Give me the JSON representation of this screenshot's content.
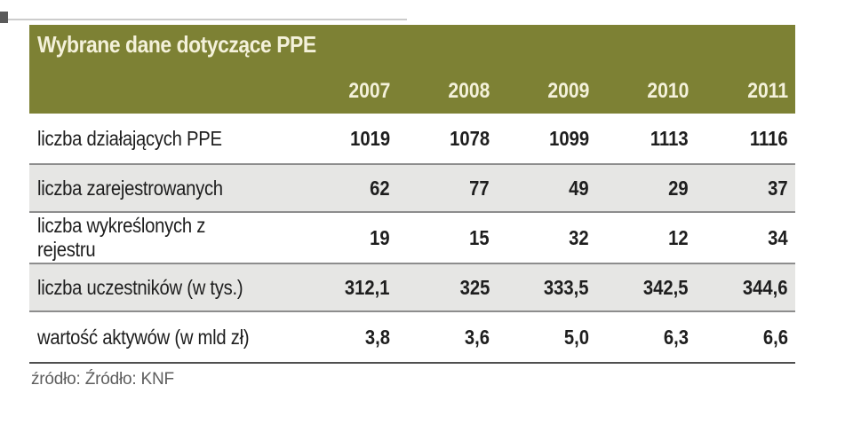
{
  "table": {
    "title": "Wybrane dane dotyczące PPE",
    "years": [
      "2007",
      "2008",
      "2009",
      "2010",
      "2011"
    ],
    "rows": [
      {
        "label": "liczba działających PPE",
        "values": [
          "1019",
          "1078",
          "1099",
          "1113",
          "1116"
        ]
      },
      {
        "label": "liczba zarejestrowanych",
        "values": [
          "62",
          "77",
          "49",
          "29",
          "37"
        ]
      },
      {
        "label": "liczba wykreślonych z rejestru",
        "values": [
          "19",
          "15",
          "32",
          "12",
          "34"
        ]
      },
      {
        "label": "liczba uczestników (w tys.)",
        "values": [
          "312,1",
          "325",
          "333,5",
          "342,5",
          "344,6"
        ]
      },
      {
        "label": "wartość aktywów (w mld zł)",
        "values": [
          "3,8",
          "3,6",
          "5,0",
          "6,3",
          "6,6"
        ]
      }
    ],
    "source": "źródło: Źródło: KNF"
  },
  "colors": {
    "header_bg": "#7d8134",
    "header_text": "#f4f1da",
    "alt_row_bg": "#e6e6e4",
    "alt_row_border": "#8d8d8d",
    "body_text": "#1e1e1e",
    "bottom_rule": "#4f4f4f",
    "source_text": "#5e5e5e"
  },
  "chart_data": {
    "type": "table",
    "title": "Wybrane dane dotyczące PPE",
    "categories": [
      "2007",
      "2008",
      "2009",
      "2010",
      "2011"
    ],
    "series": [
      {
        "name": "liczba działających PPE",
        "values": [
          1019,
          1078,
          1099,
          1113,
          1116
        ]
      },
      {
        "name": "liczba zarejestrowanych",
        "values": [
          62,
          77,
          49,
          29,
          37
        ]
      },
      {
        "name": "liczba wykreślonych z rejestru",
        "values": [
          19,
          15,
          32,
          12,
          34
        ]
      },
      {
        "name": "liczba uczestników (w tys.)",
        "values": [
          312.1,
          325,
          333.5,
          342.5,
          344.6
        ]
      },
      {
        "name": "wartość aktywów (w mld zł)",
        "values": [
          3.8,
          3.6,
          5.0,
          6.3,
          6.6
        ]
      }
    ],
    "source": "źródło: Źródło: KNF"
  }
}
